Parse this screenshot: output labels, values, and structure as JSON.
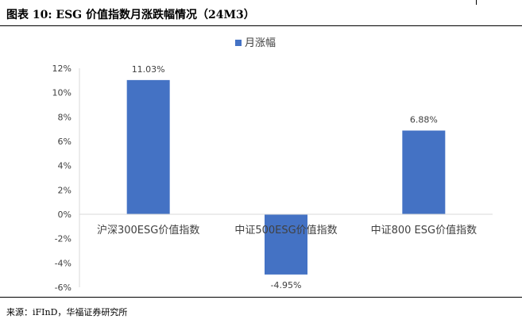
{
  "figure": {
    "title": "图表 10:  ESG 价值指数月涨跌幅情况（24M3）",
    "source": "来源：iFInD，华福证券研究所"
  },
  "chart_data": {
    "type": "bar",
    "categories": [
      "沪深300ESG价值指数",
      "中证500ESG价值指数",
      "中证800 ESG价值指数"
    ],
    "series": [
      {
        "name": "月涨幅",
        "values": [
          11.03,
          -4.95,
          6.88
        ],
        "color": "#4472C4",
        "data_labels": [
          "11.03%",
          "-4.95%",
          "6.88%"
        ]
      }
    ],
    "ylim": [
      -6,
      12
    ],
    "yticks": [
      12,
      10,
      8,
      6,
      4,
      2,
      0,
      -2,
      -4,
      -6
    ],
    "ytick_labels": [
      "12%",
      "10%",
      "8%",
      "6%",
      "4%",
      "2%",
      "0%",
      "-2%",
      "-4%",
      "-6%"
    ],
    "legend": "top-center",
    "grid": false
  }
}
